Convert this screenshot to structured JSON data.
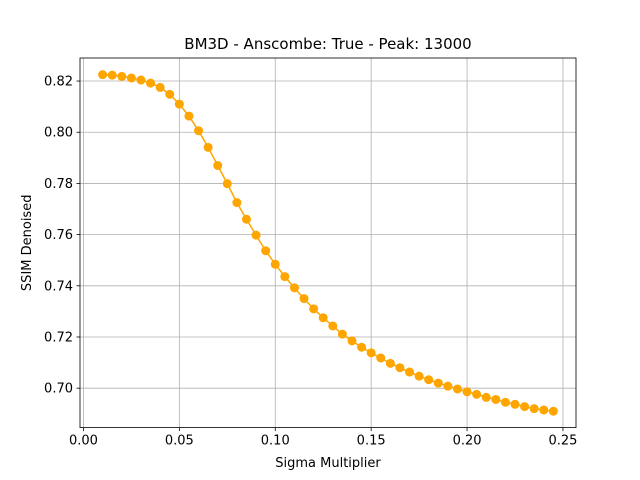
{
  "chart_data": {
    "type": "line",
    "title": "BM3D - Anscombe: True - Peak: 13000",
    "xlabel": "Sigma Multiplier",
    "ylabel": "SSIM Denoised",
    "xlim": [
      -0.0018,
      0.2568
    ],
    "ylim": [
      0.6846,
      0.829
    ],
    "grid": true,
    "xticks": [
      0.0,
      0.05,
      0.1,
      0.15,
      0.2,
      0.25
    ],
    "xtick_labels": [
      "0.00",
      "0.05",
      "0.10",
      "0.15",
      "0.20",
      "0.25"
    ],
    "yticks": [
      0.7,
      0.72,
      0.74,
      0.76,
      0.78,
      0.8,
      0.82
    ],
    "ytick_labels": [
      "0.70",
      "0.72",
      "0.74",
      "0.76",
      "0.78",
      "0.80",
      "0.82"
    ],
    "series": [
      {
        "color": "#ffa500",
        "marker": "circle",
        "x": [
          0.01,
          0.015,
          0.02,
          0.025,
          0.03,
          0.035,
          0.04,
          0.045,
          0.05,
          0.055,
          0.06,
          0.065,
          0.07,
          0.075,
          0.08,
          0.085,
          0.09,
          0.095,
          0.1,
          0.105,
          0.11,
          0.115,
          0.12,
          0.125,
          0.13,
          0.135,
          0.14,
          0.145,
          0.15,
          0.155,
          0.16,
          0.165,
          0.17,
          0.175,
          0.18,
          0.185,
          0.19,
          0.195,
          0.2,
          0.205,
          0.21,
          0.215,
          0.22,
          0.225,
          0.23,
          0.235,
          0.24,
          0.245
        ],
        "y": [
          0.8225,
          0.8223,
          0.8218,
          0.8212,
          0.8204,
          0.8192,
          0.8175,
          0.8148,
          0.811,
          0.8063,
          0.8006,
          0.7941,
          0.787,
          0.7799,
          0.7725,
          0.766,
          0.7598,
          0.7537,
          0.7484,
          0.7436,
          0.7392,
          0.735,
          0.731,
          0.7275,
          0.7243,
          0.7211,
          0.7185,
          0.716,
          0.7138,
          0.7118,
          0.7097,
          0.708,
          0.7063,
          0.7047,
          0.7033,
          0.702,
          0.7008,
          0.6997,
          0.6986,
          0.6976,
          0.6964,
          0.6956,
          0.6945,
          0.6937,
          0.6928,
          0.692,
          0.6915,
          0.691
        ]
      }
    ]
  }
}
